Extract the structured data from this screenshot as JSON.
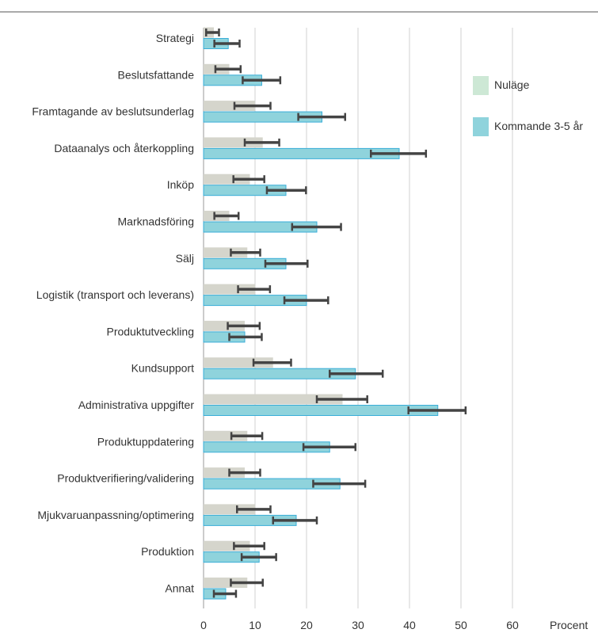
{
  "chart_data": {
    "type": "bar",
    "orientation": "horizontal",
    "categories": [
      "Strategi",
      "Beslutsfattande",
      "Framtagande av beslutsunderlag",
      "Dataanalys och återkoppling",
      "Inköp",
      "Marknadsföring",
      "Sälj",
      "Logistik (transport och leverans)",
      "Produktutveckling",
      "Kundsupport",
      "Administrativa uppgifter",
      "Produktuppdatering",
      "Produktverifiering/validering",
      "Mjukvaruanpassning/optimering",
      "Produktion",
      "Annat"
    ],
    "series": [
      {
        "name": "Nuläge",
        "color": "#d5d5cc",
        "values": [
          2,
          5,
          10,
          11.5,
          9,
          5,
          8.5,
          10,
          8,
          13.5,
          27,
          8.5,
          8,
          10,
          9,
          8.5
        ],
        "error_low": [
          0.5,
          2.3,
          6,
          8,
          5.8,
          2.1,
          5.3,
          6.7,
          4.7,
          9.7,
          22,
          5.4,
          5,
          6.5,
          5.9,
          5.3
        ],
        "error_high": [
          3,
          7.2,
          13,
          14.7,
          11.8,
          6.8,
          11,
          12.9,
          10.9,
          17,
          31.8,
          11.4,
          11,
          13,
          11.8,
          11.5
        ]
      },
      {
        "name": "Kommande 3-5 år",
        "color": "#8fd3dc",
        "values": [
          4.8,
          11.3,
          23,
          38,
          16,
          22,
          16,
          20,
          8,
          29.5,
          45.5,
          24.5,
          26.5,
          18,
          10.8,
          4.3
        ],
        "error_low": [
          2.1,
          7.6,
          18.4,
          32.5,
          12.3,
          17.2,
          12,
          15.7,
          5,
          24.5,
          39.8,
          19.4,
          21.3,
          13.5,
          7.4,
          2
        ],
        "error_high": [
          7,
          14.9,
          27.5,
          43.2,
          19.9,
          26.7,
          20.2,
          24.2,
          11.3,
          34.8,
          50.9,
          29.5,
          31.4,
          22,
          14.1,
          6.3
        ]
      }
    ],
    "x_ticks": [
      "0",
      "10",
      "20",
      "30",
      "40",
      "50",
      "60"
    ],
    "xlim": [
      0,
      70
    ],
    "xlabel": "Procent",
    "grid": "vertical",
    "legend_position": "right"
  }
}
